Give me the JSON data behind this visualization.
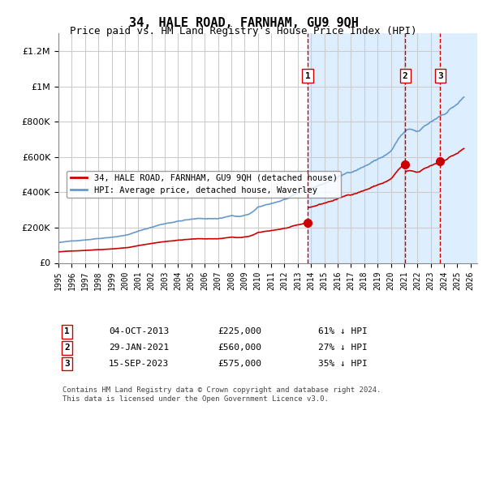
{
  "title": "34, HALE ROAD, FARNHAM, GU9 9QH",
  "subtitle": "Price paid vs. HM Land Registry's House Price Index (HPI)",
  "legend_line1": "34, HALE ROAD, FARNHAM, GU9 9QH (detached house)",
  "legend_line2": "HPI: Average price, detached house, Waverley",
  "transactions": [
    {
      "num": 1,
      "date": "04-OCT-2013",
      "price": 225000,
      "hpi_pct": "61% ↓ HPI"
    },
    {
      "num": 2,
      "date": "29-JAN-2021",
      "price": 560000,
      "hpi_pct": "27% ↓ HPI"
    },
    {
      "num": 3,
      "date": "15-SEP-2023",
      "price": 575000,
      "hpi_pct": "35% ↓ HPI"
    }
  ],
  "footnote": "Contains HM Land Registry data © Crown copyright and database right 2024.\nThis data is licensed under the Open Government Licence v3.0.",
  "hpi_color": "#6699cc",
  "price_color": "#cc0000",
  "dashed_vline_color": "#cc0000",
  "highlight_region_color": "#ddeeff",
  "hatch_region_color": "#ddeeff",
  "ylim": [
    0,
    1300000
  ],
  "yticks": [
    0,
    200000,
    400000,
    600000,
    800000,
    1000000,
    1200000
  ],
  "xlim_start": 1995.0,
  "xlim_end": 2026.5,
  "transaction_years": [
    2013.75,
    2021.08,
    2023.71
  ],
  "transaction_prices": [
    225000,
    560000,
    575000
  ],
  "hpi_years_start": 1995.0,
  "background_color": "#ffffff"
}
